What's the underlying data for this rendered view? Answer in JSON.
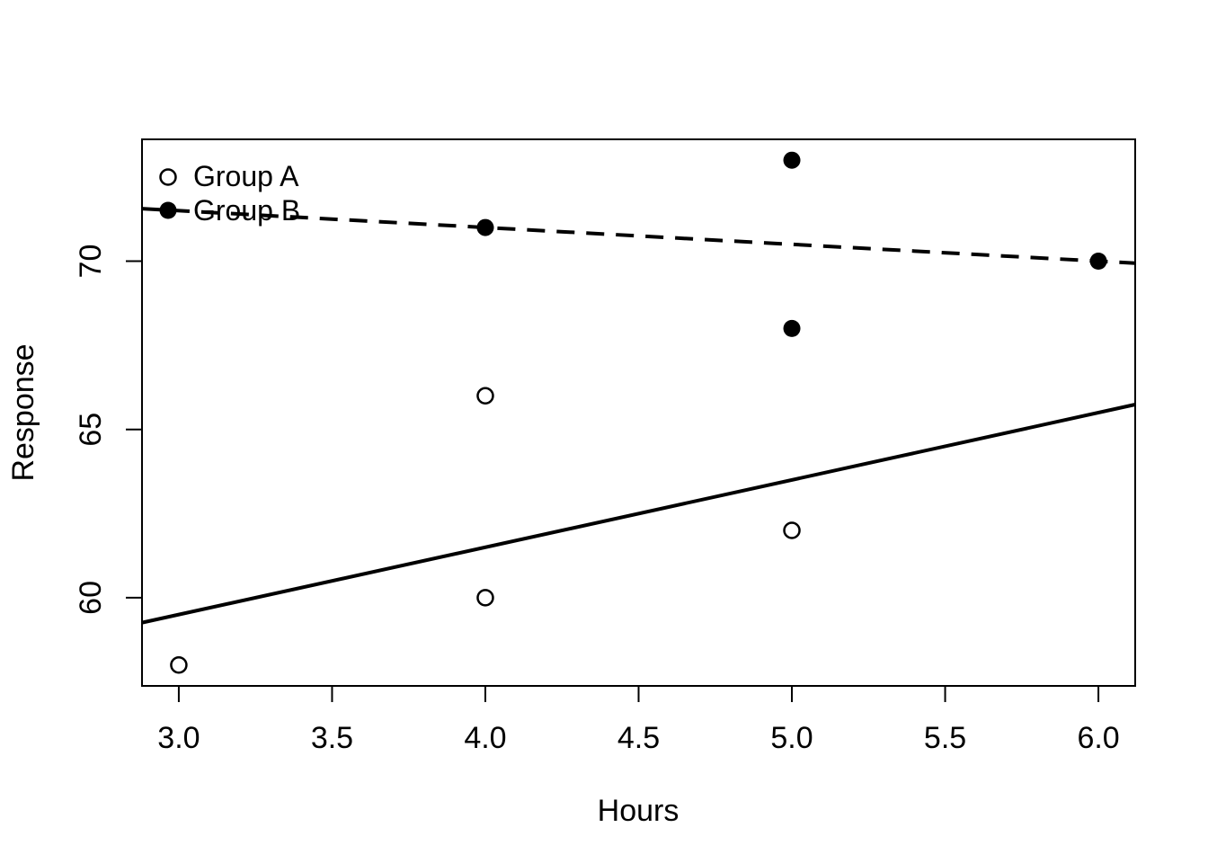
{
  "chart_data": {
    "type": "scatter",
    "title": "",
    "xlabel": "Hours",
    "ylabel": "Response",
    "xlim": [
      2.88,
      6.12
    ],
    "ylim": [
      57.38,
      73.62
    ],
    "x_ticks": [
      {
        "value": 3.0,
        "label": "3.0"
      },
      {
        "value": 3.5,
        "label": "3.5"
      },
      {
        "value": 4.0,
        "label": "4.0"
      },
      {
        "value": 4.5,
        "label": "4.5"
      },
      {
        "value": 5.0,
        "label": "5.0"
      },
      {
        "value": 5.5,
        "label": "5.5"
      },
      {
        "value": 6.0,
        "label": "6.0"
      }
    ],
    "y_ticks": [
      {
        "value": 60,
        "label": "60"
      },
      {
        "value": 65,
        "label": "65"
      },
      {
        "value": 70,
        "label": "70"
      }
    ],
    "grid": "off",
    "series": [
      {
        "name": "Group A",
        "marker": "open-circle",
        "points": [
          [
            3,
            58
          ],
          [
            4,
            66
          ],
          [
            4,
            60
          ],
          [
            5,
            62
          ]
        ],
        "fit_line": {
          "style": "solid",
          "intercept": 53.5,
          "slope": 2
        }
      },
      {
        "name": "Group B",
        "marker": "filled-circle",
        "points": [
          [
            4,
            71
          ],
          [
            5,
            73
          ],
          [
            5,
            68
          ],
          [
            6,
            70
          ]
        ],
        "fit_line": {
          "style": "dashed",
          "intercept": 73,
          "slope": -0.5
        }
      }
    ],
    "legend": {
      "position": "top-left-inside",
      "entries": [
        {
          "label": "Group A",
          "marker": "open-circle"
        },
        {
          "label": "Group B",
          "marker": "filled-circle"
        }
      ]
    },
    "colors": {
      "foreground": "#000000",
      "background": "#ffffff"
    }
  }
}
